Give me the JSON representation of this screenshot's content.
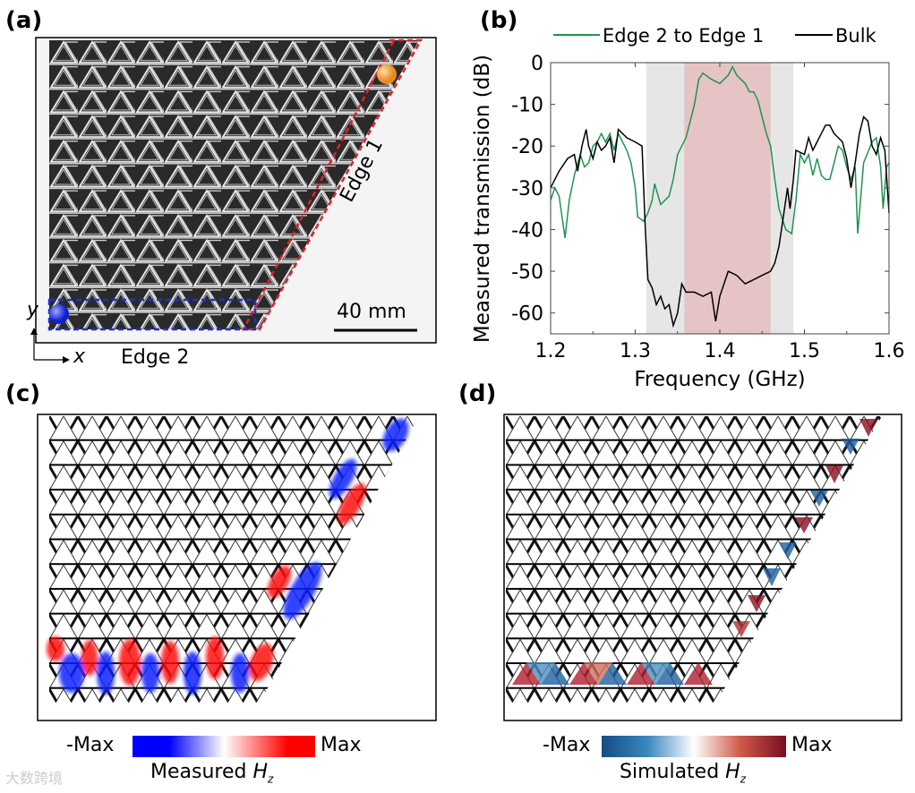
{
  "panels": {
    "a": {
      "label": "(a)",
      "edge1": "Edge 1",
      "edge2": "Edge 2",
      "scale_bar": "40 mm",
      "axis_x": "x",
      "axis_y": "y"
    },
    "b": {
      "label": "(b)"
    },
    "c": {
      "label": "(c)",
      "colorbar_min": "-Max",
      "colorbar_max": "Max",
      "caption": "Measured ",
      "caption_var": "H",
      "caption_sub": "z"
    },
    "d": {
      "label": "(d)",
      "colorbar_min": "-Max",
      "colorbar_max": "Max",
      "caption": "Simulated ",
      "caption_var": "H",
      "caption_sub": "z"
    }
  },
  "colors": {
    "edge_series": "#1e9450",
    "bulk_series": "#000000",
    "bulk_gap": "#e6e6e6",
    "edge_band": "#e6c4c6",
    "edge1_line": "#e0202a",
    "edge2_line": "#2030d0",
    "measured_neg": "#0000ff",
    "measured_pos": "#ff0000",
    "sim_neg": "#154c84",
    "sim_pos": "#7a0c22"
  },
  "watermark": "大数跨境",
  "chart_data": {
    "type": "line",
    "title": "",
    "xlabel": "Frequency (GHz)",
    "ylabel": "Measured transmission (dB)",
    "xlim": [
      1.2,
      1.6
    ],
    "ylim": [
      -65,
      0
    ],
    "xticks": [
      "1.2",
      "1.3",
      "1.4",
      "1.5",
      "1.6"
    ],
    "yticks": [
      "0",
      "-10",
      "-20",
      "-30",
      "-40",
      "-50",
      "-60"
    ],
    "legend_position": "top",
    "shaded_regions": [
      {
        "name": "bulk gap",
        "x": [
          1.313,
          1.487
        ]
      },
      {
        "name": "edge band",
        "x": [
          1.358,
          1.46
        ]
      }
    ],
    "series": [
      {
        "name": "Edge 2 to Edge 1",
        "x": [
          1.2,
          1.205,
          1.21,
          1.217,
          1.222,
          1.228,
          1.235,
          1.24,
          1.245,
          1.25,
          1.255,
          1.26,
          1.265,
          1.27,
          1.275,
          1.28,
          1.285,
          1.29,
          1.295,
          1.3,
          1.303,
          1.31,
          1.315,
          1.32,
          1.323,
          1.33,
          1.34,
          1.345,
          1.35,
          1.36,
          1.37,
          1.375,
          1.38,
          1.39,
          1.4,
          1.41,
          1.415,
          1.42,
          1.43,
          1.435,
          1.44,
          1.445,
          1.455,
          1.46,
          1.465,
          1.47,
          1.478,
          1.485,
          1.49,
          1.495,
          1.5,
          1.505,
          1.51,
          1.515,
          1.52,
          1.525,
          1.53,
          1.535,
          1.54,
          1.545,
          1.55,
          1.555,
          1.56,
          1.563,
          1.57,
          1.58,
          1.585,
          1.59,
          1.593,
          1.597,
          1.6
        ],
        "y": [
          -33,
          -30,
          -32,
          -42,
          -33,
          -27,
          -22,
          -25,
          -24,
          -20,
          -19,
          -17,
          -19,
          -17,
          -21,
          -17,
          -19,
          -21,
          -24,
          -30,
          -37,
          -38,
          -36,
          -33,
          -29,
          -34,
          -32,
          -28,
          -22,
          -18,
          -10,
          -4,
          -2.5,
          -4,
          -5,
          -3,
          -1,
          -3,
          -5,
          -7,
          -7,
          -9,
          -17,
          -20,
          -28,
          -35,
          -40,
          -41,
          -33,
          -22,
          -24,
          -22,
          -27,
          -23,
          -27,
          -28,
          -28,
          -24,
          -20,
          -21,
          -25,
          -28,
          -25,
          -41,
          -24,
          -19,
          -18,
          -25,
          -35,
          -25,
          -24
        ]
      },
      {
        "name": "Bulk",
        "x": [
          1.2,
          1.21,
          1.22,
          1.228,
          1.232,
          1.237,
          1.242,
          1.245,
          1.25,
          1.255,
          1.26,
          1.265,
          1.27,
          1.275,
          1.28,
          1.285,
          1.29,
          1.3,
          1.308,
          1.312,
          1.315,
          1.32,
          1.325,
          1.33,
          1.335,
          1.34,
          1.345,
          1.35,
          1.355,
          1.36,
          1.37,
          1.38,
          1.39,
          1.395,
          1.4,
          1.41,
          1.42,
          1.43,
          1.44,
          1.45,
          1.46,
          1.465,
          1.47,
          1.475,
          1.48,
          1.483,
          1.487,
          1.49,
          1.5,
          1.505,
          1.51,
          1.52,
          1.525,
          1.53,
          1.535,
          1.54,
          1.545,
          1.55,
          1.555,
          1.56,
          1.565,
          1.57,
          1.575,
          1.58,
          1.585,
          1.59,
          1.595,
          1.6
        ],
        "y": [
          -30,
          -26,
          -23,
          -22,
          -26,
          -20,
          -16,
          -20,
          -23,
          -19,
          -21,
          -20,
          -18,
          -24,
          -16,
          -17,
          -18,
          -19,
          -20,
          -40,
          -52,
          -54,
          -58,
          -56,
          -59,
          -58,
          -63,
          -60,
          -53,
          -55,
          -55,
          -56,
          -55,
          -62,
          -56,
          -50,
          -51,
          -53,
          -52,
          -51,
          -50,
          -48,
          -44,
          -37,
          -30,
          -35,
          -28,
          -21,
          -22,
          -18,
          -21,
          -17,
          -15,
          -15,
          -17,
          -18,
          -19,
          -23,
          -30,
          -24,
          -17,
          -13,
          -14,
          -20,
          -22,
          -18,
          -21,
          -36
        ]
      }
    ]
  }
}
